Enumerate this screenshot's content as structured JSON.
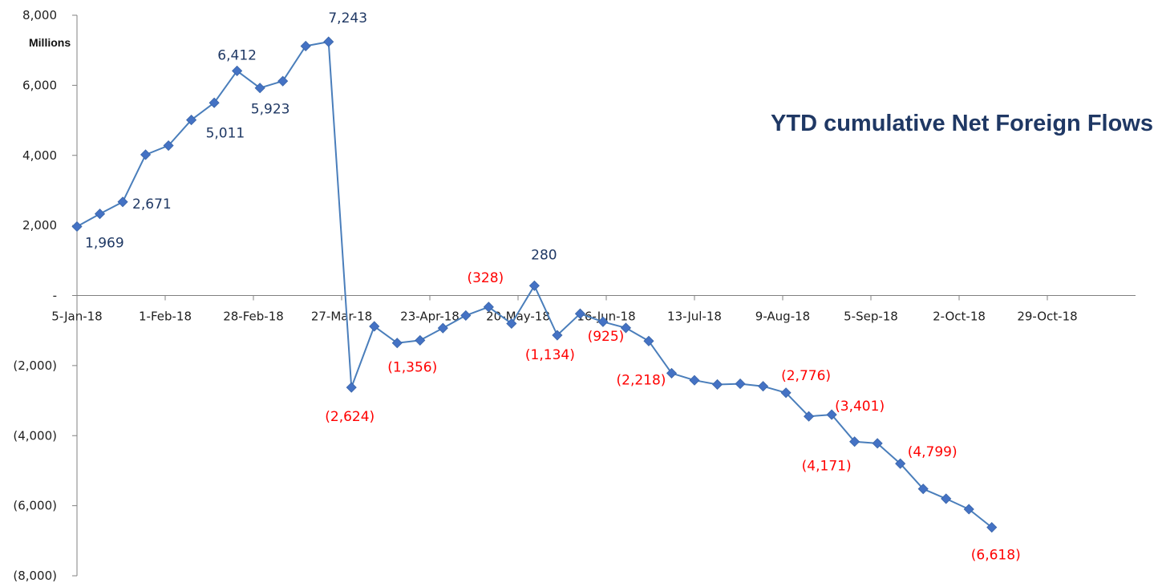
{
  "chart_data": {
    "type": "line",
    "title": "YTD cumulative Net Foreign Flows",
    "y_unit_label": "Millions",
    "xlabel": "",
    "ylabel": "",
    "ylim": [
      -8000,
      8000
    ],
    "y_ticks": [
      {
        "value": 8000,
        "label": "8,000"
      },
      {
        "value": 6000,
        "label": "6,000"
      },
      {
        "value": 4000,
        "label": "4,000"
      },
      {
        "value": 2000,
        "label": "2,000"
      },
      {
        "value": 0,
        "label": "-"
      },
      {
        "value": -2000,
        "label": "(2,000)"
      },
      {
        "value": -4000,
        "label": "(4,000)"
      },
      {
        "value": -6000,
        "label": "(6,000)"
      },
      {
        "value": -8000,
        "label": "(8,000)"
      }
    ],
    "x_range": [
      "2018-01-05",
      "2018-11-25"
    ],
    "x_ticks": [
      {
        "date": "2018-01-05",
        "label": "5-Jan-18"
      },
      {
        "date": "2018-02-01",
        "label": "1-Feb-18"
      },
      {
        "date": "2018-02-28",
        "label": "28-Feb-18"
      },
      {
        "date": "2018-03-27",
        "label": "27-Mar-18"
      },
      {
        "date": "2018-04-23",
        "label": "23-Apr-18"
      },
      {
        "date": "2018-05-20",
        "label": "20-May-18"
      },
      {
        "date": "2018-06-16",
        "label": "16-Jun-18"
      },
      {
        "date": "2018-07-13",
        "label": "13-Jul-18"
      },
      {
        "date": "2018-08-09",
        "label": "9-Aug-18"
      },
      {
        "date": "2018-09-05",
        "label": "5-Sep-18"
      },
      {
        "date": "2018-10-02",
        "label": "2-Oct-18"
      },
      {
        "date": "2018-10-29",
        "label": "29-Oct-18"
      }
    ],
    "grid": false,
    "legend": "none",
    "colors": {
      "line": "#4a7ebb",
      "marker": "#4472c4",
      "positive_label": "#1f3864",
      "negative_label": "#ff0000",
      "axis": "#808080"
    },
    "series": [
      {
        "points": [
          {
            "date": "2018-01-05",
            "value": 1969
          },
          {
            "date": "2018-01-12",
            "value": 2330
          },
          {
            "date": "2018-01-19",
            "value": 2671
          },
          {
            "date": "2018-01-26",
            "value": 4020
          },
          {
            "date": "2018-02-02",
            "value": 4280
          },
          {
            "date": "2018-02-09",
            "value": 5011
          },
          {
            "date": "2018-02-16",
            "value": 5500
          },
          {
            "date": "2018-02-23",
            "value": 6412
          },
          {
            "date": "2018-03-02",
            "value": 5923
          },
          {
            "date": "2018-03-09",
            "value": 6120
          },
          {
            "date": "2018-03-16",
            "value": 7120
          },
          {
            "date": "2018-03-23",
            "value": 7243
          },
          {
            "date": "2018-03-30",
            "value": -2624
          },
          {
            "date": "2018-04-06",
            "value": -880
          },
          {
            "date": "2018-04-13",
            "value": -1356
          },
          {
            "date": "2018-04-20",
            "value": -1280
          },
          {
            "date": "2018-04-27",
            "value": -930
          },
          {
            "date": "2018-05-04",
            "value": -570
          },
          {
            "date": "2018-05-11",
            "value": -328
          },
          {
            "date": "2018-05-18",
            "value": -800
          },
          {
            "date": "2018-05-25",
            "value": 280
          },
          {
            "date": "2018-06-01",
            "value": -1134
          },
          {
            "date": "2018-06-08",
            "value": -520
          },
          {
            "date": "2018-06-15",
            "value": -750
          },
          {
            "date": "2018-06-22",
            "value": -925
          },
          {
            "date": "2018-06-29",
            "value": -1300
          },
          {
            "date": "2018-07-06",
            "value": -2218
          },
          {
            "date": "2018-07-13",
            "value": -2420
          },
          {
            "date": "2018-07-20",
            "value": -2540
          },
          {
            "date": "2018-07-27",
            "value": -2520
          },
          {
            "date": "2018-08-03",
            "value": -2590
          },
          {
            "date": "2018-08-10",
            "value": -2776
          },
          {
            "date": "2018-08-17",
            "value": -3450
          },
          {
            "date": "2018-08-24",
            "value": -3401
          },
          {
            "date": "2018-08-31",
            "value": -4171
          },
          {
            "date": "2018-09-07",
            "value": -4220
          },
          {
            "date": "2018-09-14",
            "value": -4799
          },
          {
            "date": "2018-09-21",
            "value": -5520
          },
          {
            "date": "2018-09-28",
            "value": -5800
          },
          {
            "date": "2018-10-05",
            "value": -6100
          },
          {
            "date": "2018-10-12",
            "value": -6618
          }
        ]
      }
    ],
    "data_labels": [
      {
        "date": "2018-01-05",
        "value": 1969,
        "text": "1,969",
        "sign": "positive",
        "anchor": "start",
        "dx": 10,
        "dy": 26
      },
      {
        "date": "2018-01-19",
        "value": 2671,
        "text": "2,671",
        "sign": "positive",
        "anchor": "start",
        "dx": 12,
        "dy": 8
      },
      {
        "date": "2018-02-09",
        "value": 5011,
        "text": "5,011",
        "sign": "positive",
        "anchor": "start",
        "dx": 18,
        "dy": 22
      },
      {
        "date": "2018-02-23",
        "value": 6412,
        "text": "6,412",
        "sign": "positive",
        "anchor": "middle",
        "dx": 0,
        "dy": -14
      },
      {
        "date": "2018-03-02",
        "value": 5923,
        "text": "5,923",
        "sign": "positive",
        "anchor": "middle",
        "dx": 13,
        "dy": 32
      },
      {
        "date": "2018-03-23",
        "value": 7243,
        "text": "7,243",
        "sign": "positive",
        "anchor": "middle",
        "dx": 24,
        "dy": -24
      },
      {
        "date": "2018-03-30",
        "value": -2624,
        "text": "(2,624)",
        "sign": "negative",
        "anchor": "middle",
        "dx": -2,
        "dy": 42
      },
      {
        "date": "2018-04-13",
        "value": -1356,
        "text": "(1,356)",
        "sign": "negative",
        "anchor": "middle",
        "dx": 19,
        "dy": 36
      },
      {
        "date": "2018-05-11",
        "value": -328,
        "text": "(328)",
        "sign": "negative",
        "anchor": "middle",
        "dx": -4,
        "dy": -31
      },
      {
        "date": "2018-05-25",
        "value": 280,
        "text": "280",
        "sign": "positive",
        "anchor": "middle",
        "dx": 12,
        "dy": -33
      },
      {
        "date": "2018-06-01",
        "value": -1134,
        "text": "(1,134)",
        "sign": "negative",
        "anchor": "middle",
        "dx": -9,
        "dy": 30
      },
      {
        "date": "2018-06-22",
        "value": -925,
        "text": "(925)",
        "sign": "negative",
        "anchor": "middle",
        "dx": -25,
        "dy": 16
      },
      {
        "date": "2018-07-06",
        "value": -2218,
        "text": "(2,218)",
        "sign": "negative",
        "anchor": "middle",
        "dx": -38,
        "dy": 14
      },
      {
        "date": "2018-08-10",
        "value": -2776,
        "text": "(2,776)",
        "sign": "negative",
        "anchor": "middle",
        "dx": 25,
        "dy": -16
      },
      {
        "date": "2018-08-24",
        "value": -3401,
        "text": "(3,401)",
        "sign": "negative",
        "anchor": "middle",
        "dx": 35,
        "dy": -5
      },
      {
        "date": "2018-08-31",
        "value": -4171,
        "text": "(4,171)",
        "sign": "negative",
        "anchor": "middle",
        "dx": -35,
        "dy": 36
      },
      {
        "date": "2018-09-14",
        "value": -4799,
        "text": "(4,799)",
        "sign": "negative",
        "anchor": "middle",
        "dx": 40,
        "dy": -9
      },
      {
        "date": "2018-10-12",
        "value": -6618,
        "text": "(6,618)",
        "sign": "negative",
        "anchor": "middle",
        "dx": 5,
        "dy": 40
      }
    ]
  }
}
